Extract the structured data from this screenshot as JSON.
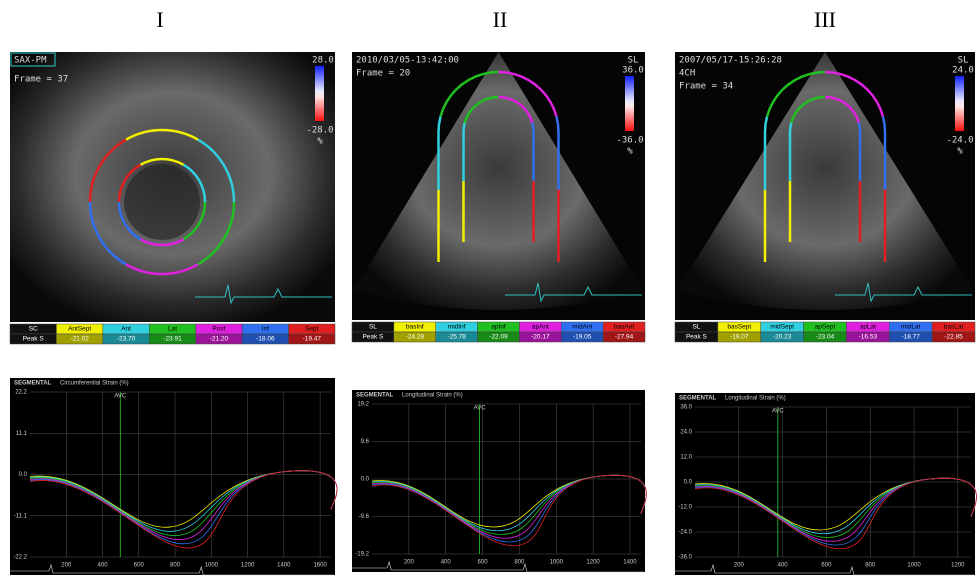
{
  "panels": [
    {
      "label": "I",
      "image": {
        "texts": [
          "SAX-PM",
          "Frame = 37"
        ],
        "scale": {
          "top": "28.0",
          "bottom": "-28.0",
          "unit": "%"
        }
      },
      "table": {
        "header": [
          "SC",
          "AntSept",
          "Ant",
          "Lat",
          "Post",
          "Inf",
          "Sept"
        ],
        "row": [
          "Peak S",
          "-21.02",
          "-23.70",
          "-23.91",
          "-21.20",
          "-18.06",
          "-19.47"
        ]
      },
      "plot": {
        "title": "SEGMENTAL",
        "subtitle": "Circumferential Strain (%)",
        "marker": "AVC",
        "yticks": [
          "22.2",
          "11.1",
          "0.0",
          "-11.1",
          "-22.2"
        ],
        "xticks": [
          "200",
          "400",
          "600",
          "800",
          "1000",
          "1200",
          "1400",
          "1600"
        ]
      }
    },
    {
      "label": "II",
      "image": {
        "texts": [
          "2010/03/05-13:42:00",
          "Frame = 20"
        ],
        "scale": {
          "name": "SL",
          "top": "36.0",
          "bottom": "-36.0",
          "unit": "%"
        }
      },
      "table": {
        "header": [
          "SL",
          "basInf",
          "midInf",
          "apInf",
          "apAnt",
          "midAnt",
          "basAnt"
        ],
        "row": [
          "Peak S",
          "-24.28",
          "-25.78",
          "-22.09",
          "-20.17",
          "-19.05",
          "-27.94"
        ]
      },
      "plot": {
        "title": "SEGMENTAL",
        "subtitle": "Longitudinal Strain (%)",
        "marker": "AVC",
        "yticks": [
          "19.2",
          "9.6",
          "0.0",
          "-9.6",
          "-19.2"
        ],
        "xticks": [
          "200",
          "400",
          "600",
          "800",
          "1000",
          "1200",
          "1400"
        ]
      }
    },
    {
      "label": "III",
      "image": {
        "texts": [
          "2007/05/17-15:26:28",
          "4CH",
          "Frame = 34"
        ],
        "scale": {
          "name": "SL",
          "top": "24.0",
          "bottom": "-24.0",
          "unit": "%"
        }
      },
      "table": {
        "header": [
          "SL",
          "basSept",
          "midSept",
          "apSept",
          "apLat",
          "midLat",
          "basLat"
        ],
        "row": [
          "Peak S",
          "-19.07",
          "-20.23",
          "-23.04",
          "-16.53",
          "-18.77",
          "-22.85"
        ]
      },
      "plot": {
        "title": "SEGMENTAL",
        "subtitle": "Longitudinal Strain (%)",
        "marker": "AVC",
        "yticks": [
          "36.0",
          "24.0",
          "12.0",
          "0.0",
          "-12.0",
          "-24.0",
          "-36.0"
        ],
        "xticks": [
          "200",
          "400",
          "600",
          "800",
          "1000",
          "1200"
        ]
      }
    }
  ]
}
